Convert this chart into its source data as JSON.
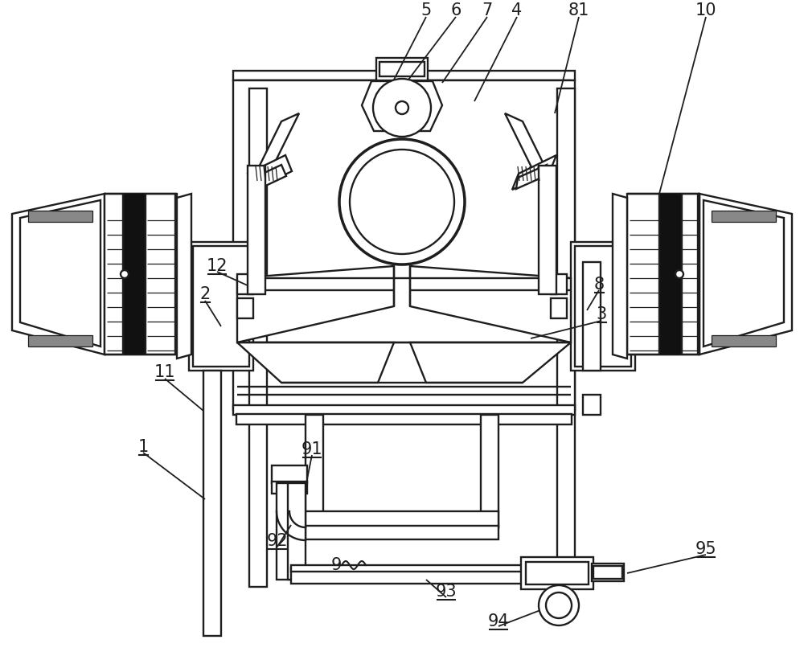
{
  "bg": "#ffffff",
  "lc": "#1e1e1e",
  "lw": 1.7,
  "lw_thin": 0.9,
  "fw": 10.0,
  "fh": 8.21
}
